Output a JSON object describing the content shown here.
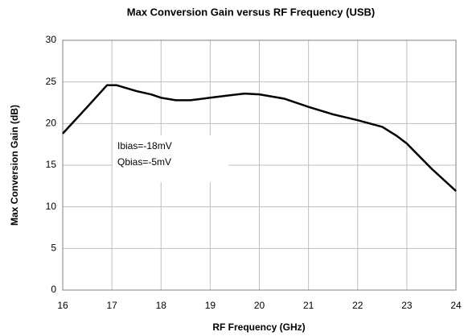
{
  "chart_data": {
    "type": "line",
    "title": "Max Conversion Gain versus RF Frequency (USB)",
    "x_label": "RF Frequency (GHz)",
    "y_label": "Max Conversion Gain (dB)",
    "annotations": [
      "Ibias=-18mV",
      "Qbias=-5mV"
    ],
    "x": [
      16,
      16.5,
      16.9,
      17.1,
      17.5,
      17.8,
      18,
      18.3,
      18.6,
      19,
      19.4,
      19.7,
      20,
      20.5,
      21,
      21.5,
      22,
      22.5,
      22.8,
      23,
      23.5,
      24
    ],
    "values": [
      18.8,
      22.0,
      24.6,
      24.6,
      23.9,
      23.5,
      23.1,
      22.8,
      22.8,
      23.1,
      23.4,
      23.6,
      23.5,
      23.0,
      22.0,
      21.1,
      20.4,
      19.6,
      18.5,
      17.6,
      14.6,
      11.9
    ],
    "color": "#000000",
    "xlim": [
      16,
      24
    ],
    "xticks": [
      16,
      17,
      18,
      19,
      20,
      21,
      22,
      23,
      24
    ],
    "ylim": [
      0,
      30
    ],
    "yticks": [
      0,
      5,
      10,
      15,
      20,
      25,
      30
    ],
    "grid": true
  }
}
